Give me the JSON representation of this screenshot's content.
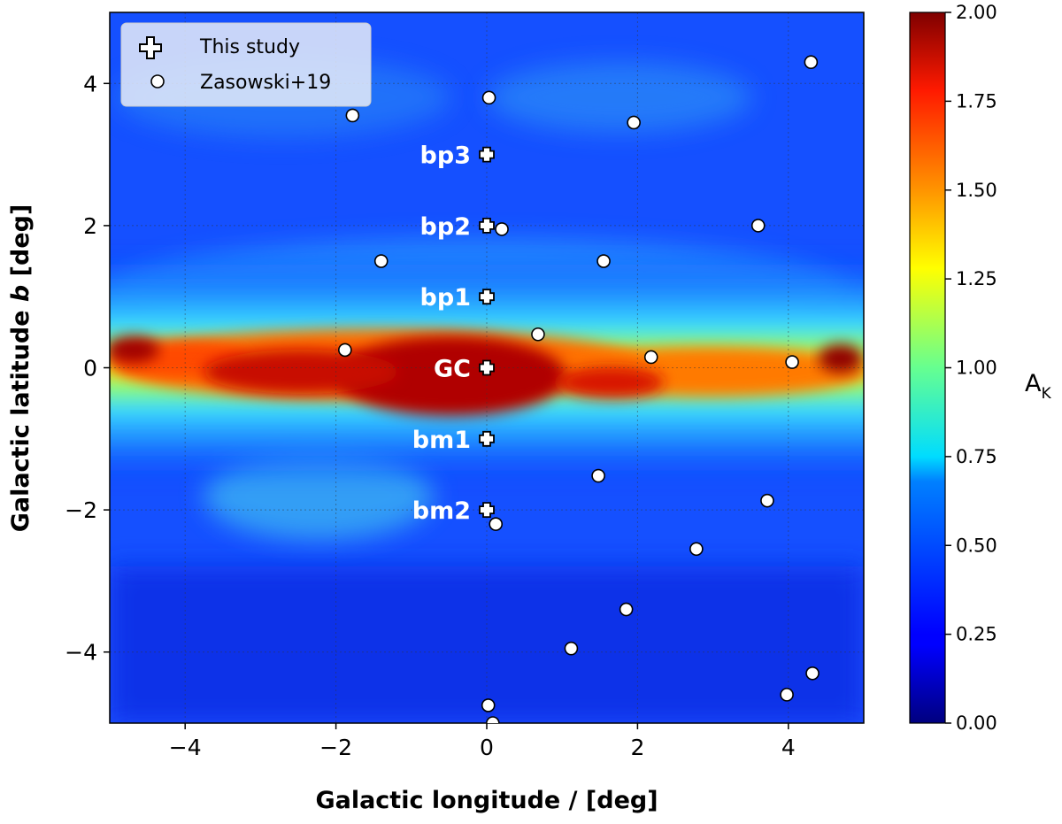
{
  "chart_data": {
    "type": "scatter",
    "title": "",
    "xlabel": "Galactic longitude / [deg]",
    "ylabel_prefix": "Galactic latitude ",
    "ylabel_var": "b",
    "ylabel_suffix": " [deg]",
    "xlim": [
      -5,
      5
    ],
    "ylim": [
      -5,
      5
    ],
    "xticks": [
      -4,
      -2,
      0,
      2,
      4
    ],
    "yticks": [
      -4,
      -2,
      0,
      2,
      4
    ],
    "xtick_labels": [
      "−4",
      "−2",
      "0",
      "2",
      "4"
    ],
    "ytick_labels": [
      "−4",
      "−2",
      "0",
      "2",
      "4"
    ],
    "grid": true,
    "legend_position": "top-left",
    "background": "extinction map A_K (jet colormap), high extinction along b = 0",
    "colorbar": {
      "label_main": "A",
      "label_sub": "K",
      "range": [
        0,
        2
      ],
      "colormap": "jet",
      "ticks": [
        0.0,
        0.25,
        0.5,
        0.75,
        1.0,
        1.25,
        1.5,
        1.75,
        2.0
      ],
      "tick_labels": [
        "0.00",
        "0.25",
        "0.50",
        "0.75",
        "1.00",
        "1.25",
        "1.50",
        "1.75",
        "2.00"
      ]
    },
    "series": [
      {
        "name": "This study",
        "marker": "plus",
        "points": [
          {
            "l": 0,
            "b": 3,
            "label": "bp3"
          },
          {
            "l": 0,
            "b": 2,
            "label": "bp2"
          },
          {
            "l": 0,
            "b": 1,
            "label": "bp1"
          },
          {
            "l": 0,
            "b": 0,
            "label": "GC"
          },
          {
            "l": 0,
            "b": -1,
            "label": "bm1"
          },
          {
            "l": 0,
            "b": -2,
            "label": "bm2"
          }
        ]
      },
      {
        "name": "Zasowski+19",
        "marker": "circle",
        "points": [
          {
            "l": 4.3,
            "b": 4.3
          },
          {
            "l": 0.03,
            "b": 3.8
          },
          {
            "l": -1.78,
            "b": 3.55
          },
          {
            "l": 1.95,
            "b": 3.45
          },
          {
            "l": 0.2,
            "b": 1.95
          },
          {
            "l": 3.6,
            "b": 2.0
          },
          {
            "l": -1.4,
            "b": 1.5
          },
          {
            "l": 1.55,
            "b": 1.5
          },
          {
            "l": 0.68,
            "b": 0.47
          },
          {
            "l": -1.88,
            "b": 0.25
          },
          {
            "l": 2.18,
            "b": 0.15
          },
          {
            "l": 4.05,
            "b": 0.08
          },
          {
            "l": 1.48,
            "b": -1.52
          },
          {
            "l": 3.72,
            "b": -1.87
          },
          {
            "l": 0.12,
            "b": -2.2
          },
          {
            "l": 2.78,
            "b": -2.55
          },
          {
            "l": 1.85,
            "b": -3.4
          },
          {
            "l": 1.12,
            "b": -3.95
          },
          {
            "l": 4.32,
            "b": -4.3
          },
          {
            "l": 3.98,
            "b": -4.6
          },
          {
            "l": 0.02,
            "b": -4.75
          },
          {
            "l": 0.08,
            "b": -5.0
          }
        ]
      }
    ]
  },
  "legend": {
    "this_study": "This study",
    "zasowski": "Zasowski+19"
  }
}
